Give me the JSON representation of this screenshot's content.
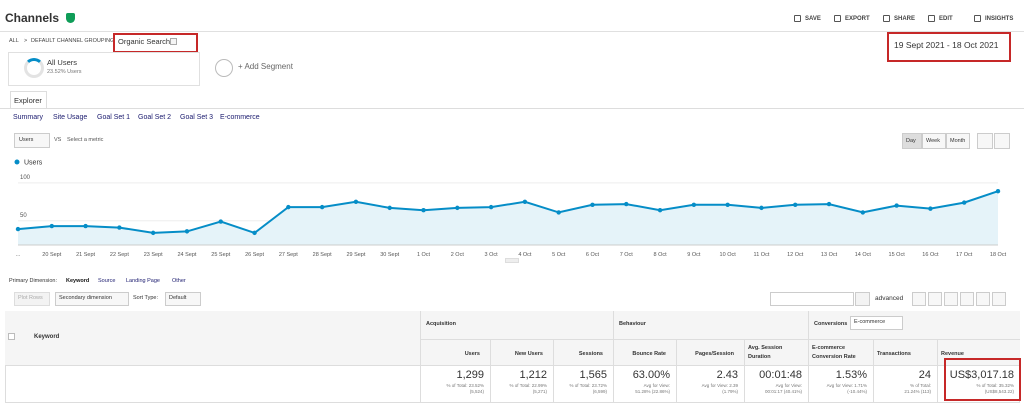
{
  "header": {
    "title": "Channels",
    "actions": [
      "SAVE",
      "EXPORT",
      "SHARE",
      "EDIT",
      "INSIGHTS"
    ]
  },
  "breadcrumb": {
    "items": [
      "ALL",
      ">",
      "DEFAULT CHANNEL GROUPING"
    ],
    "selected": "Organic Search"
  },
  "date_range": "19 Sept 2021 - 18 Oct 2021",
  "segments": {
    "name": "All Users",
    "detail": "23.52% Users",
    "add": "+ Add Segment"
  },
  "explorer_tab": "Explorer",
  "subtabs": [
    "Summary",
    "Site Usage",
    "Goal Set 1",
    "Goal Set 2",
    "Goal Set 3",
    "E-commerce"
  ],
  "metric_select": "Users",
  "vs": "VS",
  "select_metric": "Select a metric",
  "granularity": [
    "Day",
    "Week",
    "Month"
  ],
  "chart_data": {
    "type": "line",
    "categories": [
      "...",
      "20 Sept",
      "21 Sept",
      "22 Sept",
      "23 Sept",
      "24 Sept",
      "25 Sept",
      "26 Sept",
      "27 Sept",
      "28 Sept",
      "29 Sept",
      "30 Sept",
      "1 Oct",
      "2 Oct",
      "3 Oct",
      "4 Oct",
      "5 Oct",
      "6 Oct",
      "7 Oct",
      "8 Oct",
      "9 Oct",
      "10 Oct",
      "11 Oct",
      "12 Oct",
      "13 Oct",
      "14 Oct",
      "15 Oct",
      "16 Oct",
      "17 Oct",
      "18 Oct"
    ],
    "series": [
      {
        "name": "Users",
        "color": "#058dc7",
        "values": [
          39,
          43,
          43,
          41,
          34,
          36,
          49,
          34,
          68,
          68,
          75,
          67,
          64,
          67,
          68,
          75,
          61,
          71,
          72,
          64,
          71,
          71,
          67,
          71,
          72,
          61,
          70,
          66,
          74,
          89
        ]
      }
    ],
    "ylim": [
      18,
      117
    ],
    "yticks": [
      50,
      100
    ],
    "grid": true,
    "area_color": "#e5f3f9"
  },
  "primary_dimension": {
    "label": "Primary Dimension:",
    "options": [
      "Keyword",
      "Source",
      "Landing Page",
      "Other"
    ]
  },
  "controls": {
    "plot_rows": "Plot Rows",
    "secondary": "Secondary dimension",
    "sort_type": "Sort Type:",
    "sort_value": "Default",
    "advanced": "advanced"
  },
  "table": {
    "keyword_header": "Keyword",
    "groups": [
      "Acquisition",
      "Behaviour",
      "Conversions"
    ],
    "conversion_select": "E-commerce",
    "columns": [
      {
        "name": "Users",
        "value": "1,299",
        "note": [
          "% of Total: 23.52%",
          "(5,524)"
        ]
      },
      {
        "name": "New Users",
        "value": "1,212",
        "note": [
          "% of Total: 22.99%",
          "(5,271)"
        ]
      },
      {
        "name": "Sessions",
        "value": "1,565",
        "note": [
          "% of Total: 23.72%",
          "(6,599)"
        ]
      },
      {
        "name": "Bounce Rate",
        "value": "63.00%",
        "note": [
          "Avg for View:",
          "51.28% (22.86%)"
        ]
      },
      {
        "name": "Pages/Session",
        "value": "2.43",
        "note": [
          "Avg for View: 2.39",
          "(1.79%)"
        ]
      },
      {
        "name": "Avg. Session Duration",
        "value": "00:01:48",
        "note": [
          "Avg for View:",
          "00:01:17 (40.41%)"
        ]
      },
      {
        "name": "E-commerce Conversion Rate",
        "value": "1.53%",
        "note": [
          "Avg for View: 1.71%",
          "(-10.44%)"
        ]
      },
      {
        "name": "Transactions",
        "value": "24",
        "note": [
          "% of Total:",
          "21.24% (113)"
        ]
      },
      {
        "name": "Revenue",
        "value": "US$3,017.18",
        "note": [
          "% of Total: 35.32%",
          "(US$8,543.22)"
        ]
      }
    ]
  }
}
